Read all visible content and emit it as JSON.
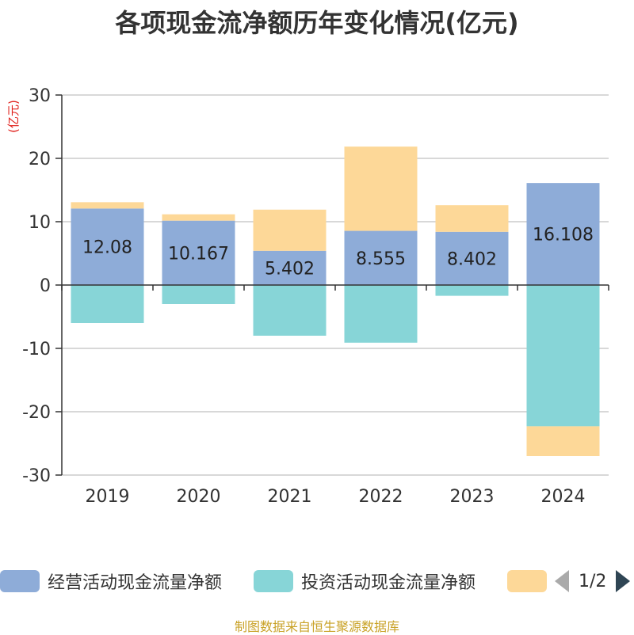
{
  "title": "各项现金流净额历年变化情况(亿元)",
  "source": "制图数据来自恒生聚源数据库",
  "pager": {
    "text": "1/2"
  },
  "chart_data": {
    "type": "bar",
    "stacked": true,
    "ylabel": "(亿元)",
    "ylim": [
      -30,
      30
    ],
    "yticks": [
      -30,
      -20,
      -10,
      0,
      10,
      20,
      30
    ],
    "grid": true,
    "legend_position": "bottom",
    "categories": [
      "2019",
      "2020",
      "2021",
      "2022",
      "2023",
      "2024"
    ],
    "series": [
      {
        "name": "经营活动现金流量净额",
        "color": "#8eacd8",
        "values": [
          12.08,
          10.167,
          5.402,
          8.555,
          8.402,
          16.108
        ],
        "labels": [
          "12.08",
          "10.167",
          "5.402",
          "8.555",
          "8.402",
          "16.108"
        ]
      },
      {
        "name": "投资活动现金流量净额",
        "color": "#87d5d7",
        "values": [
          -6.0,
          -3.0,
          -8.0,
          -9.1,
          -1.7,
          -22.3
        ]
      },
      {
        "name": "",
        "color": "#fdd898",
        "values": [
          1.0,
          1.0,
          6.5,
          13.3,
          4.2,
          -4.7
        ]
      }
    ]
  }
}
